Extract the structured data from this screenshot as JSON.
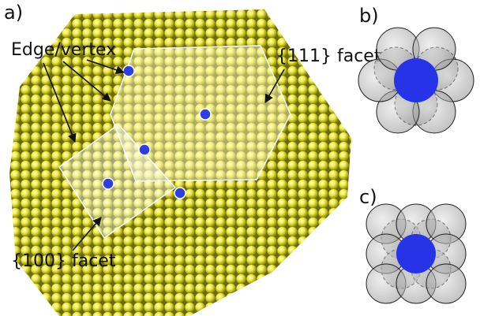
{
  "panels": {
    "a": {
      "label": "a)",
      "annotations": [
        "Edge/vertex",
        "{111} facet",
        "{100} facet"
      ]
    },
    "b": {
      "label": "b)"
    },
    "c": {
      "label": "c)"
    }
  }
}
